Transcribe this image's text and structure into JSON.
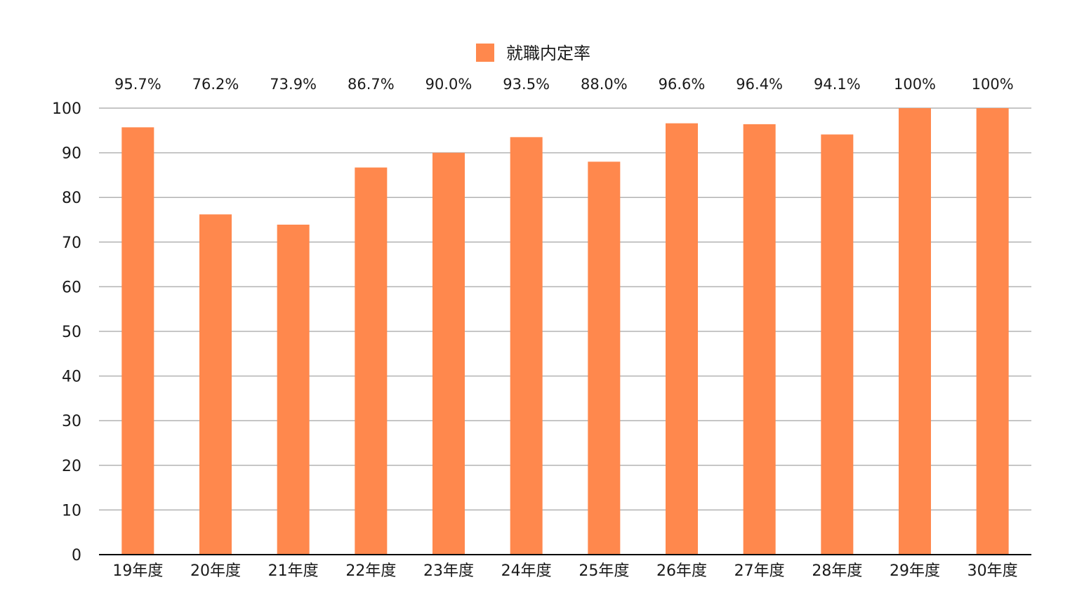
{
  "chart_data": {
    "type": "bar",
    "categories": [
      "19年度",
      "20年度",
      "21年度",
      "22年度",
      "23年度",
      "24年度",
      "25年度",
      "26年度",
      "27年度",
      "28年度",
      "29年度",
      "30年度"
    ],
    "series": [
      {
        "name": "就職内定率",
        "values": [
          95.7,
          76.2,
          73.9,
          86.7,
          90.0,
          93.5,
          88.0,
          96.6,
          96.4,
          94.1,
          100,
          100
        ],
        "data_labels": [
          "95.7%",
          "76.2%",
          "73.9%",
          "86.7%",
          "90.0%",
          "93.5%",
          "88.0%",
          "96.6%",
          "96.4%",
          "94.1%",
          "100%",
          "100%"
        ],
        "color": "#ff884d"
      }
    ],
    "y_ticks": [
      "0",
      "10",
      "20",
      "30",
      "40",
      "50",
      "60",
      "70",
      "80",
      "90",
      "100"
    ],
    "ylim": [
      0,
      100
    ],
    "grid": true,
    "legend": "top-center",
    "gridline_color": "#b3b3b3",
    "axis_color": "#000000"
  }
}
